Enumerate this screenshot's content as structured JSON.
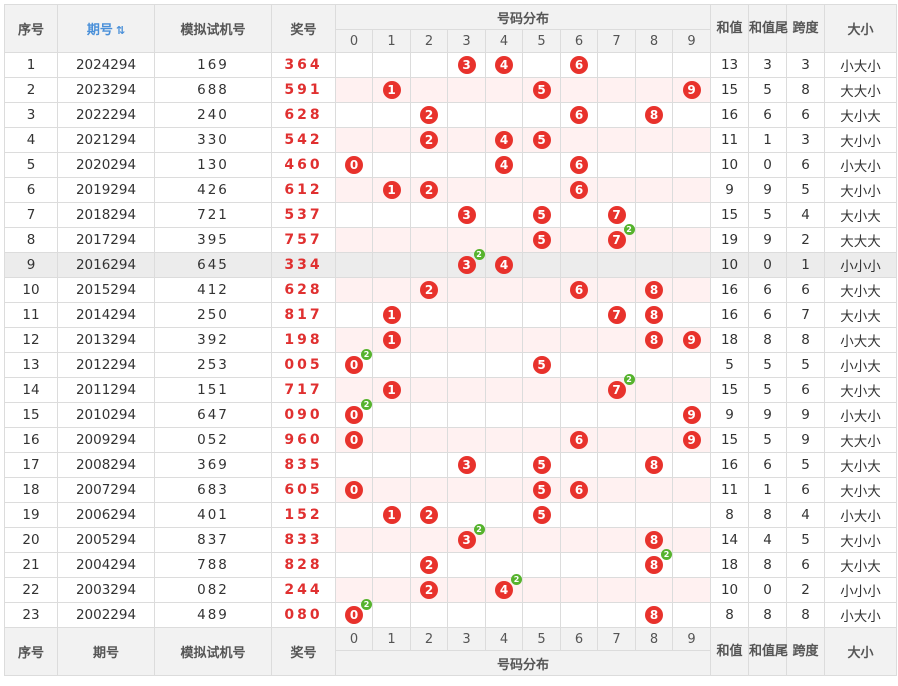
{
  "header": {
    "seq": "序号",
    "period": "期号",
    "sim": "模拟试机号",
    "win": "奖号",
    "dist": "号码分布",
    "sum": "和值",
    "sumtail": "和值尾",
    "span": "跨度",
    "size": "大小",
    "digits": [
      "0",
      "1",
      "2",
      "3",
      "4",
      "5",
      "6",
      "7",
      "8",
      "9"
    ]
  },
  "footer": {
    "seq": "序号",
    "period": "期号",
    "sim": "模拟试机号",
    "win": "奖号",
    "dist": "号码分布",
    "sum": "和值",
    "sumtail": "和值尾",
    "span": "跨度",
    "size": "大小"
  },
  "colors": {
    "ball": "#e8322c",
    "repeat_badge": "#56b32d",
    "win_text": "#e03030",
    "highlight_row": "#ececec",
    "stripe": "#fff1f1"
  },
  "highlight_row_index": 8,
  "rows": [
    {
      "seq": "1",
      "period": "2024294",
      "sim": "169",
      "win": "364",
      "balls": [
        "3",
        "4",
        "6"
      ],
      "reps": {},
      "sum": "13",
      "tail": "3",
      "span": "3",
      "size": "小大小"
    },
    {
      "seq": "2",
      "period": "2023294",
      "sim": "688",
      "win": "591",
      "balls": [
        "1",
        "5",
        "9"
      ],
      "reps": {},
      "sum": "15",
      "tail": "5",
      "span": "8",
      "size": "大大小"
    },
    {
      "seq": "3",
      "period": "2022294",
      "sim": "240",
      "win": "628",
      "balls": [
        "2",
        "6",
        "8"
      ],
      "reps": {},
      "sum": "16",
      "tail": "6",
      "span": "6",
      "size": "大小大"
    },
    {
      "seq": "4",
      "period": "2021294",
      "sim": "330",
      "win": "542",
      "balls": [
        "2",
        "4",
        "5"
      ],
      "reps": {},
      "sum": "11",
      "tail": "1",
      "span": "3",
      "size": "大小小"
    },
    {
      "seq": "5",
      "period": "2020294",
      "sim": "130",
      "win": "460",
      "balls": [
        "0",
        "4",
        "6"
      ],
      "reps": {},
      "sum": "10",
      "tail": "0",
      "span": "6",
      "size": "小大小"
    },
    {
      "seq": "6",
      "period": "2019294",
      "sim": "426",
      "win": "612",
      "balls": [
        "1",
        "2",
        "6"
      ],
      "reps": {},
      "sum": "9",
      "tail": "9",
      "span": "5",
      "size": "大小小"
    },
    {
      "seq": "7",
      "period": "2018294",
      "sim": "721",
      "win": "537",
      "balls": [
        "3",
        "5",
        "7"
      ],
      "reps": {},
      "sum": "15",
      "tail": "5",
      "span": "4",
      "size": "大小大"
    },
    {
      "seq": "8",
      "period": "2017294",
      "sim": "395",
      "win": "757",
      "balls": [
        "5",
        "7"
      ],
      "reps": {
        "7": "2"
      },
      "sum": "19",
      "tail": "9",
      "span": "2",
      "size": "大大大"
    },
    {
      "seq": "9",
      "period": "2016294",
      "sim": "645",
      "win": "334",
      "balls": [
        "3",
        "4"
      ],
      "reps": {
        "3": "2"
      },
      "sum": "10",
      "tail": "0",
      "span": "1",
      "size": "小小小"
    },
    {
      "seq": "10",
      "period": "2015294",
      "sim": "412",
      "win": "628",
      "balls": [
        "2",
        "6",
        "8"
      ],
      "reps": {},
      "sum": "16",
      "tail": "6",
      "span": "6",
      "size": "大小大"
    },
    {
      "seq": "11",
      "period": "2014294",
      "sim": "250",
      "win": "817",
      "balls": [
        "1",
        "7",
        "8"
      ],
      "reps": {},
      "sum": "16",
      "tail": "6",
      "span": "7",
      "size": "大小大"
    },
    {
      "seq": "12",
      "period": "2013294",
      "sim": "392",
      "win": "198",
      "balls": [
        "1",
        "8",
        "9"
      ],
      "reps": {},
      "sum": "18",
      "tail": "8",
      "span": "8",
      "size": "小大大"
    },
    {
      "seq": "13",
      "period": "2012294",
      "sim": "253",
      "win": "005",
      "balls": [
        "0",
        "5"
      ],
      "reps": {
        "0": "2"
      },
      "sum": "5",
      "tail": "5",
      "span": "5",
      "size": "小小大"
    },
    {
      "seq": "14",
      "period": "2011294",
      "sim": "151",
      "win": "717",
      "balls": [
        "1",
        "7"
      ],
      "reps": {
        "7": "2"
      },
      "sum": "15",
      "tail": "5",
      "span": "6",
      "size": "大小大"
    },
    {
      "seq": "15",
      "period": "2010294",
      "sim": "647",
      "win": "090",
      "balls": [
        "0",
        "9"
      ],
      "reps": {
        "0": "2"
      },
      "sum": "9",
      "tail": "9",
      "span": "9",
      "size": "小大小"
    },
    {
      "seq": "16",
      "period": "2009294",
      "sim": "052",
      "win": "960",
      "balls": [
        "0",
        "6",
        "9"
      ],
      "reps": {},
      "sum": "15",
      "tail": "5",
      "span": "9",
      "size": "大大小"
    },
    {
      "seq": "17",
      "period": "2008294",
      "sim": "369",
      "win": "835",
      "balls": [
        "3",
        "5",
        "8"
      ],
      "reps": {},
      "sum": "16",
      "tail": "6",
      "span": "5",
      "size": "大小大"
    },
    {
      "seq": "18",
      "period": "2007294",
      "sim": "683",
      "win": "605",
      "balls": [
        "0",
        "5",
        "6"
      ],
      "reps": {},
      "sum": "11",
      "tail": "1",
      "span": "6",
      "size": "大小大"
    },
    {
      "seq": "19",
      "period": "2006294",
      "sim": "401",
      "win": "152",
      "balls": [
        "1",
        "2",
        "5"
      ],
      "reps": {},
      "sum": "8",
      "tail": "8",
      "span": "4",
      "size": "小大小"
    },
    {
      "seq": "20",
      "period": "2005294",
      "sim": "837",
      "win": "833",
      "balls": [
        "3",
        "8"
      ],
      "reps": {
        "3": "2"
      },
      "sum": "14",
      "tail": "4",
      "span": "5",
      "size": "大小小"
    },
    {
      "seq": "21",
      "period": "2004294",
      "sim": "788",
      "win": "828",
      "balls": [
        "2",
        "8"
      ],
      "reps": {
        "8": "2"
      },
      "sum": "18",
      "tail": "8",
      "span": "6",
      "size": "大小大"
    },
    {
      "seq": "22",
      "period": "2003294",
      "sim": "082",
      "win": "244",
      "balls": [
        "2",
        "4"
      ],
      "reps": {
        "4": "2"
      },
      "sum": "10",
      "tail": "0",
      "span": "2",
      "size": "小小小"
    },
    {
      "seq": "23",
      "period": "2002294",
      "sim": "489",
      "win": "080",
      "balls": [
        "0",
        "8"
      ],
      "reps": {
        "0": "2"
      },
      "sum": "8",
      "tail": "8",
      "span": "8",
      "size": "小大小"
    }
  ]
}
